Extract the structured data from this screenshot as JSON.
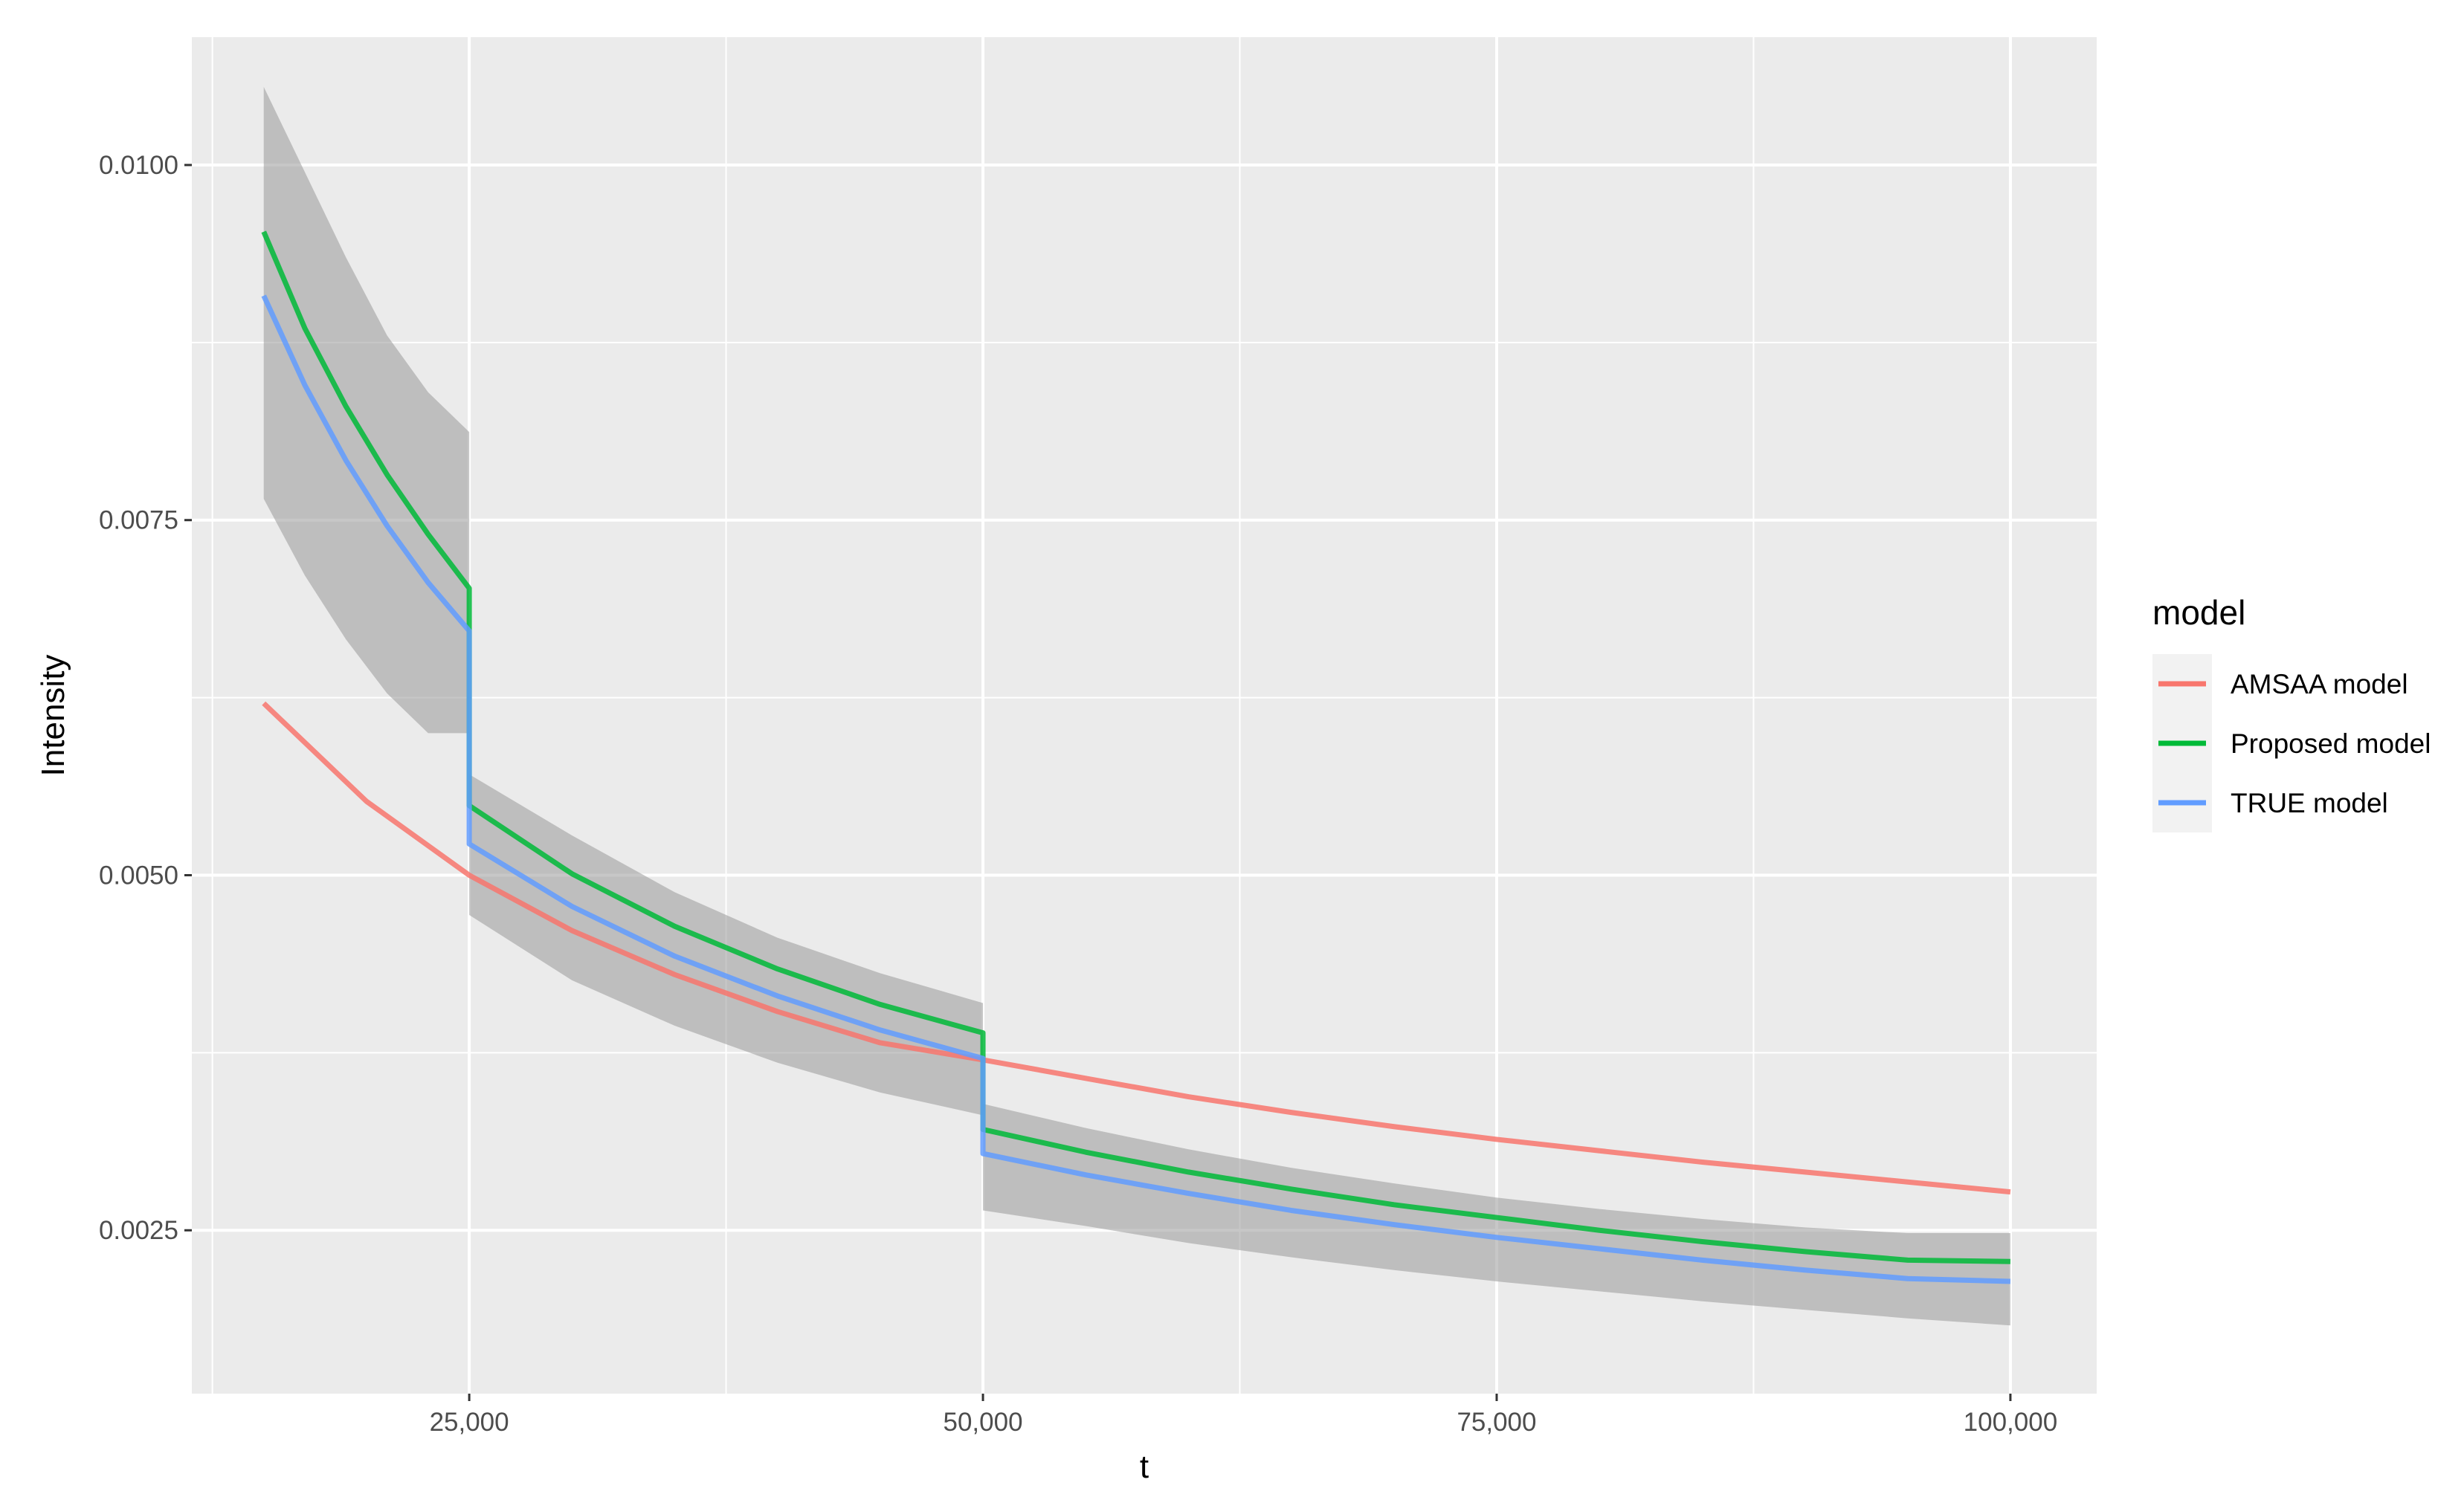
{
  "chart_data": {
    "type": "line",
    "title": "",
    "xlabel": "t",
    "ylabel": "Intensity",
    "xlim": [
      11500,
      104200
    ],
    "ylim": [
      0.00135,
      0.0109
    ],
    "x_ticks": [
      25000,
      50000,
      75000,
      100000
    ],
    "x_tick_labels": [
      "25,000",
      "50,000",
      "75,000",
      "100,000"
    ],
    "x_minor_ticks": [
      12500,
      37500,
      62500,
      87500
    ],
    "y_ticks": [
      0.0025,
      0.005,
      0.0075,
      0.01
    ],
    "y_tick_labels": [
      "0.0025",
      "0.0050",
      "0.0075",
      "0.0100"
    ],
    "y_minor_ticks": [
      0.00375,
      0.00625,
      0.00875
    ],
    "grid": true,
    "legend": {
      "title": "model",
      "position": "right"
    },
    "series": [
      {
        "name": "AMSAA model",
        "color": "#F8766D",
        "x": [
          15000,
          20000,
          25000,
          30000,
          35000,
          40000,
          45000,
          50000,
          55000,
          60000,
          65000,
          70000,
          75000,
          80000,
          85000,
          90000,
          95000,
          100000
        ],
        "y": [
          0.00621,
          0.00552,
          0.005,
          0.00461,
          0.0043,
          0.00404,
          0.00382,
          0.0037,
          0.00357,
          0.00344,
          0.00333,
          0.00323,
          0.00314,
          0.00306,
          0.00298,
          0.00291,
          0.00284,
          0.00277
        ]
      },
      {
        "name": "Proposed model",
        "color": "#00BA38",
        "x": [
          15000,
          17000,
          19000,
          21000,
          23000,
          25000,
          25000,
          30000,
          35000,
          40000,
          45000,
          50000,
          50000,
          55000,
          60000,
          65000,
          70000,
          75000,
          80000,
          85000,
          90000,
          95000,
          100000
        ],
        "y": [
          0.00953,
          0.00885,
          0.0083,
          0.00782,
          0.0074,
          0.00702,
          0.00549,
          0.00501,
          0.00464,
          0.00434,
          0.00409,
          0.00389,
          0.00321,
          0.00305,
          0.00291,
          0.00279,
          0.00268,
          0.00259,
          0.0025,
          0.00242,
          0.00235,
          0.00229,
          0.00228
        ]
      },
      {
        "name": "TRUE model",
        "color": "#619CFF",
        "x": [
          15000,
          17000,
          19000,
          21000,
          23000,
          25000,
          25000,
          30000,
          35000,
          40000,
          45000,
          50000,
          50000,
          55000,
          60000,
          65000,
          70000,
          75000,
          80000,
          85000,
          90000,
          95000,
          100000
        ],
        "y": [
          0.00908,
          0.00845,
          0.00792,
          0.00746,
          0.00706,
          0.00672,
          0.00522,
          0.00478,
          0.00443,
          0.00415,
          0.00391,
          0.00371,
          0.00304,
          0.00289,
          0.00276,
          0.00264,
          0.00254,
          0.00245,
          0.00237,
          0.00229,
          0.00222,
          0.00216,
          0.00214
        ]
      }
    ],
    "confidence_band": {
      "color": "#999999",
      "opacity": 0.55,
      "x": [
        15000,
        17000,
        19000,
        21000,
        23000,
        25000,
        25000,
        30000,
        35000,
        40000,
        45000,
        50000,
        50000,
        55000,
        60000,
        65000,
        70000,
        75000,
        80000,
        85000,
        90000,
        95000,
        100000
      ],
      "lower": [
        0.00765,
        0.00711,
        0.00666,
        0.00628,
        0.006,
        0.006,
        0.00472,
        0.00426,
        0.00394,
        0.00368,
        0.00347,
        0.00331,
        0.00264,
        0.00253,
        0.00241,
        0.00231,
        0.00222,
        0.00214,
        0.00207,
        0.002,
        0.00194,
        0.00188,
        0.00183
      ],
      "upper": [
        0.01055,
        0.00995,
        0.00935,
        0.0088,
        0.0084,
        0.00812,
        0.00571,
        0.00528,
        0.00488,
        0.00456,
        0.00431,
        0.0041,
        0.00339,
        0.00322,
        0.00307,
        0.00294,
        0.00283,
        0.00273,
        0.00265,
        0.00258,
        0.00252,
        0.00248,
        0.00248
      ]
    }
  }
}
